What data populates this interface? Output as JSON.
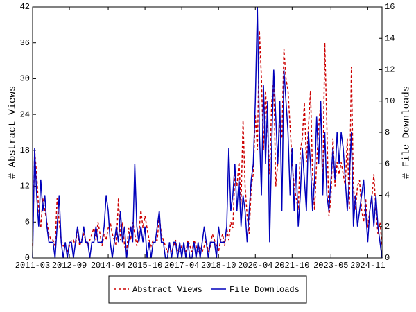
{
  "chart_data": {
    "type": "line",
    "categories": [
      "2011-03",
      null,
      null,
      null,
      null,
      null,
      null,
      null,
      null,
      null,
      null,
      null,
      null,
      null,
      null,
      null,
      null,
      null,
      "2012-09",
      null,
      null,
      null,
      null,
      null,
      null,
      null,
      null,
      null,
      null,
      null,
      null,
      null,
      null,
      null,
      null,
      null,
      null,
      "2014-04",
      null,
      null,
      null,
      null,
      null,
      null,
      null,
      null,
      null,
      null,
      null,
      null,
      null,
      null,
      null,
      null,
      null,
      "2015-10",
      null,
      null,
      null,
      null,
      null,
      null,
      null,
      null,
      null,
      null,
      null,
      null,
      null,
      null,
      null,
      null,
      null,
      "2017-04",
      null,
      null,
      null,
      null,
      null,
      null,
      null,
      null,
      null,
      null,
      null,
      null,
      null,
      null,
      null,
      null,
      null,
      "2018-10",
      null,
      null,
      null,
      null,
      null,
      null,
      null,
      null,
      null,
      null,
      null,
      null,
      null,
      null,
      null,
      null,
      null,
      "2020-04",
      null,
      null,
      null,
      null,
      null,
      null,
      null,
      null,
      null,
      null,
      null,
      null,
      null,
      null,
      null,
      null,
      null,
      "2021-10",
      null,
      null,
      null,
      null,
      null,
      null,
      null,
      null,
      null,
      null,
      null,
      null,
      null,
      null,
      null,
      null,
      null,
      null,
      "2023-05",
      null,
      null,
      null,
      null,
      null,
      null,
      null,
      null,
      null,
      null,
      null,
      null,
      null,
      null,
      null,
      null,
      null,
      "2024-11",
      null,
      null,
      null,
      null,
      null,
      null,
      null
    ],
    "series": [
      {
        "name": "Abstract Views",
        "color": "#cc0000",
        "dash": true,
        "values": [
          2,
          18,
          14,
          8,
          5,
          10,
          8,
          6,
          4,
          3,
          3,
          2,
          10,
          6,
          3,
          2,
          2,
          1,
          2,
          3,
          3,
          2,
          5,
          2,
          3,
          4,
          3,
          2,
          3,
          4,
          5,
          3,
          6,
          4,
          2,
          4,
          3,
          5,
          6,
          4,
          3,
          2,
          10,
          3,
          6,
          2,
          1,
          5,
          3,
          6,
          4,
          2,
          4,
          8,
          5,
          7,
          5,
          3,
          2,
          3,
          3,
          3,
          7,
          4,
          3,
          2,
          1,
          2,
          1,
          2,
          3,
          1,
          1,
          2,
          2,
          1,
          3,
          2,
          1,
          3,
          2,
          1,
          2,
          1,
          2,
          3,
          1,
          2,
          4,
          3,
          2,
          1,
          3,
          4,
          2,
          5,
          3,
          6,
          5,
          14,
          12,
          16,
          9,
          23,
          12,
          7,
          4,
          12,
          14,
          24,
          18,
          38,
          30,
          18,
          28,
          22,
          14,
          26,
          30,
          12,
          16,
          24,
          20,
          35,
          30,
          28,
          22,
          16,
          12,
          10,
          8,
          18,
          20,
          26,
          16,
          22,
          28,
          14,
          8,
          16,
          22,
          26,
          12,
          36,
          22,
          7,
          10,
          20,
          12,
          16,
          14,
          16,
          14,
          12,
          20,
          8,
          32,
          12,
          8,
          12,
          13,
          8,
          6,
          10,
          5,
          8,
          10,
          14,
          8,
          4,
          6,
          2
        ]
      },
      {
        "name": "File Downloads",
        "color": "#0000bb",
        "axis": "y2",
        "values": [
          0,
          7,
          4,
          2,
          5,
          3,
          4,
          2,
          1,
          1,
          1,
          0,
          2,
          4,
          1,
          0,
          1,
          0,
          1,
          1,
          0,
          1,
          2,
          1,
          1,
          2,
          1,
          1,
          0,
          1,
          1,
          2,
          1,
          1,
          1,
          2,
          4,
          3,
          1,
          0,
          1,
          2,
          1,
          3,
          1,
          2,
          0,
          1,
          2,
          1,
          6,
          2,
          1,
          2,
          1,
          2,
          0,
          1,
          0,
          1,
          1,
          2,
          3,
          1,
          1,
          0,
          0,
          1,
          0,
          1,
          1,
          0,
          1,
          0,
          1,
          0,
          1,
          0,
          0,
          1,
          0,
          1,
          0,
          1,
          2,
          1,
          0,
          1,
          1,
          1,
          0,
          2,
          1,
          1,
          1,
          2,
          7,
          3,
          4,
          6,
          3,
          5,
          2,
          4,
          3,
          1,
          3,
          5,
          6,
          10,
          16,
          8,
          4,
          11,
          6,
          10,
          1,
          7,
          12,
          9,
          6,
          10,
          3,
          12,
          10,
          8,
          4,
          7,
          3,
          6,
          2,
          4,
          7,
          5,
          3,
          8,
          6,
          3,
          5,
          9,
          6,
          10,
          4,
          8,
          4,
          3,
          5,
          7,
          5,
          8,
          6,
          8,
          7,
          5,
          3,
          5,
          8,
          2,
          4,
          2,
          3,
          4,
          5,
          3,
          1,
          3,
          4,
          2,
          4,
          2,
          1,
          0
        ]
      }
    ],
    "ylabel": "# Abstract Views",
    "y2label": "# File Downloads",
    "ylim": [
      0,
      42
    ],
    "yticks": [
      0,
      6,
      12,
      18,
      24,
      30,
      36,
      42
    ],
    "y2lim": [
      0,
      16
    ],
    "y2ticks": [
      0,
      2,
      4,
      6,
      8,
      10,
      12,
      14,
      16
    ]
  }
}
